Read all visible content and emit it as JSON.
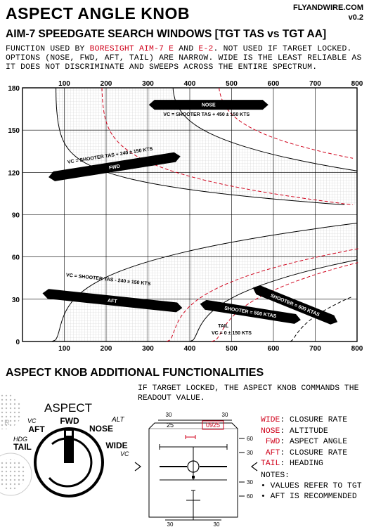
{
  "header": {
    "title": "ASPECT ANGLE KNOB",
    "site": "FLYANDWIRE.COM",
    "version": "v0.2",
    "subtitle": "AIM-7 SPEEDGATE SEARCH WINDOWS [TGT TAS vs TGT AA]"
  },
  "description": {
    "line1_a": "FUNCTION USED BY ",
    "line1_red1": "BORESIGHT AIM-7 E",
    "line1_b": " AND ",
    "line1_red2": "E-2",
    "line1_c": ". NOT USED IF TARGET LOCKED.",
    "line2": "OPTIONS (NOSE, FWD, AFT, TAIL) ARE NARROW. WIDE IS THE LEAST RELIABLE AS",
    "line3": "IT DOES NOT DISCRIMINATE AND SWEEPS ACROSS THE ENTIRE SPECTRUM."
  },
  "chart_data": {
    "type": "area",
    "xlabel": "",
    "ylabel": "",
    "xlim": [
      0,
      800
    ],
    "ylim": [
      0,
      180
    ],
    "x_ticks_top": [
      "100",
      "200",
      "300",
      "400",
      "500",
      "600",
      "700",
      "800"
    ],
    "x_ticks_bottom": [
      "100",
      "200",
      "300",
      "400",
      "500",
      "600",
      "700",
      "800"
    ],
    "y_ticks": [
      "0",
      "30",
      "60",
      "90",
      "120",
      "150",
      "180"
    ],
    "grid": true,
    "windows": [
      {
        "name": "NOSE",
        "label": "NOSE",
        "formula": "VC = SHOOTER TAS + 450 ± 150 KTS",
        "vc_center": 450
      },
      {
        "name": "FWD",
        "label": "FWD",
        "formula": "VC = SHOOTER TAS + 240 ± 150 KTS",
        "vc_center": 240
      },
      {
        "name": "AFT",
        "label": "AFT",
        "formula": "VC = SHOOTER TAS - 240 ± 150 KTS",
        "vc_center": -240
      },
      {
        "name": "TAIL",
        "label": "TAIL",
        "formula": "VC = 0 ± 150 KTS",
        "vc_center": 0
      }
    ],
    "annotations": [
      "SHOOTER = 500 KTAS",
      "SHOOTER = 600 KTAS"
    ]
  },
  "section2": {
    "title": "ASPECT KNOB ADDITIONAL FUNCTIONALITIES",
    "locked_text": "IF TARGET LOCKED, THE ASPECT KNOB COMMANDS THE READOUT VALUE."
  },
  "knob": {
    "title": "ASPECT",
    "positions": [
      "TAIL",
      "AFT",
      "FWD",
      "NOSE",
      "WIDE"
    ],
    "sub_hdg": "HDG",
    "sub_vc": "VC",
    "sub_alt": "ALT",
    "sub_vc2": "VC"
  },
  "hud": {
    "top_left": "30",
    "top_right": "30",
    "heading_25": "25",
    "readout": "0925",
    "right_60_top": "60",
    "right_30_top": "30",
    "right_30_bot": "30",
    "right_60_bot": "60",
    "bottom_30_left": "30",
    "bottom_30_right": "30"
  },
  "legend": [
    {
      "key": "WIDE",
      "value": ": CLOSURE RATE"
    },
    {
      "key": "NOSE",
      "value": ": ALTITUDE"
    },
    {
      "key": " FWD",
      "value": ": ASPECT ANGLE"
    },
    {
      "key": " AFT",
      "value": ": CLOSURE RATE"
    },
    {
      "key": "TAIL",
      "value": ": HEADING"
    }
  ],
  "notes": {
    "title": "NOTES:",
    "items": [
      "• VALUES REFER TO TGT",
      "• AFT IS RECOMMENDED"
    ]
  },
  "colors": {
    "accent_red": "#d0021b",
    "grid": "#cccccc",
    "band_fill": "#d9d9d9"
  }
}
